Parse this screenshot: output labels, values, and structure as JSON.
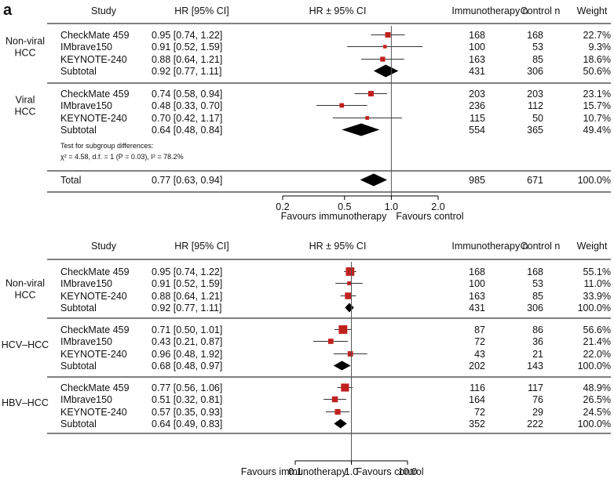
{
  "panel_label": "a",
  "chart_data": [
    {
      "type": "forest",
      "columns": {
        "study": "Study",
        "hr": "HR [95% CI]",
        "plot": "HR ± 95% CI",
        "immuno": "Immunotherapy n",
        "control": "Control n",
        "weight": "Weight"
      },
      "x_scale": "log",
      "xlim": [
        0.2,
        2.0
      ],
      "x_ticks": [
        {
          "value": 0.2,
          "label": "0.2"
        },
        {
          "value": 0.5,
          "label": "0.5"
        },
        {
          "value": 1.0,
          "label": "1.0"
        },
        {
          "value": 2.0,
          "label": "2.0"
        }
      ],
      "reference_line": 1.0,
      "favours_left": "Favours immunotherapy",
      "favours_right": "Favours control",
      "groups": [
        {
          "name": "Non-viral HCC",
          "name_lines": [
            "Non-viral",
            "HCC"
          ],
          "studies": [
            {
              "study": "CheckMate 459",
              "hr_text": "0.95 [0.74, 1.22]",
              "hr": 0.95,
              "lo": 0.74,
              "hi": 1.22,
              "immuno": "168",
              "control": "168",
              "weight": "22.7%",
              "w": 22.7
            },
            {
              "study": "IMbrave150",
              "hr_text": "0.91 [0.52, 1.59]",
              "hr": 0.91,
              "lo": 0.52,
              "hi": 1.59,
              "immuno": "100",
              "control": "53",
              "weight": "9.3%",
              "w": 9.3
            },
            {
              "study": "KEYNOTE-240",
              "hr_text": "0.88 [0.64, 1.21]",
              "hr": 0.88,
              "lo": 0.64,
              "hi": 1.21,
              "immuno": "163",
              "control": "85",
              "weight": "18.6%",
              "w": 18.6
            }
          ],
          "subtotal": {
            "study": "Subtotal",
            "hr_text": "0.92 [0.77, 1.11]",
            "hr": 0.92,
            "lo": 0.77,
            "hi": 1.11,
            "immuno": "431",
            "control": "306",
            "weight": "50.6%"
          }
        },
        {
          "name": "Viral HCC",
          "name_lines": [
            "Viral",
            "HCC"
          ],
          "studies": [
            {
              "study": "CheckMate 459",
              "hr_text": "0.74 [0.58, 0.94]",
              "hr": 0.74,
              "lo": 0.58,
              "hi": 0.94,
              "immuno": "203",
              "control": "203",
              "weight": "23.1%",
              "w": 23.1
            },
            {
              "study": "IMbrave150",
              "hr_text": "0.48 [0.33, 0.70]",
              "hr": 0.48,
              "lo": 0.33,
              "hi": 0.7,
              "immuno": "236",
              "control": "112",
              "weight": "15.7%",
              "w": 15.7
            },
            {
              "study": "KEYNOTE-240",
              "hr_text": "0.70 [0.42, 1.17]",
              "hr": 0.7,
              "lo": 0.42,
              "hi": 1.17,
              "immuno": "115",
              "control": "50",
              "weight": "10.7%",
              "w": 10.7
            }
          ],
          "subtotal": {
            "study": "Subtotal",
            "hr_text": "0.64 [0.48, 0.84]",
            "hr": 0.64,
            "lo": 0.48,
            "hi": 0.84,
            "immuno": "554",
            "control": "365",
            "weight": "49.4%"
          }
        }
      ],
      "subgroup_test": {
        "line1": "Test for subgroup differences:",
        "line2": "χ² = 4.58, d.f. = 1 (P = 0.03), I² = 78.2%"
      },
      "total": {
        "study": "Total",
        "hr_text": "0.77 [0.63, 0.94]",
        "hr": 0.77,
        "lo": 0.63,
        "hi": 0.94,
        "immuno": "985",
        "control": "671",
        "weight": "100.0%"
      }
    },
    {
      "type": "forest",
      "columns": {
        "study": "Study",
        "hr": "HR [95% CI]",
        "plot": "HR ± 95% CI",
        "immuno": "Immunotherapy n",
        "control": "Control n",
        "weight": "Weight"
      },
      "x_scale": "log",
      "xlim": [
        0.1,
        10.0
      ],
      "x_ticks": [
        {
          "value": 0.1,
          "label": "0.1"
        },
        {
          "value": 1.0,
          "label": "1.0"
        },
        {
          "value": 10.0,
          "label": "10.0"
        }
      ],
      "reference_line": 1.0,
      "favours_left": "Favours immunotherapy",
      "favours_right": "Favours control",
      "groups": [
        {
          "name": "Non-viral HCC",
          "name_lines": [
            "Non-viral",
            "HCC"
          ],
          "studies": [
            {
              "study": "CheckMate 459",
              "hr_text": "0.95 [0.74, 1.22]",
              "hr": 0.95,
              "lo": 0.74,
              "hi": 1.22,
              "immuno": "168",
              "control": "168",
              "weight": "55.1%",
              "w": 55.1
            },
            {
              "study": "IMbrave150",
              "hr_text": "0.91 [0.52, 1.59]",
              "hr": 0.91,
              "lo": 0.52,
              "hi": 1.59,
              "immuno": "100",
              "control": "53",
              "weight": "11.0%",
              "w": 11.0
            },
            {
              "study": "KEYNOTE-240",
              "hr_text": "0.88 [0.64, 1.21]",
              "hr": 0.88,
              "lo": 0.64,
              "hi": 1.21,
              "immuno": "163",
              "control": "85",
              "weight": "33.9%",
              "w": 33.9
            }
          ],
          "subtotal": {
            "study": "Subtotal",
            "hr_text": "0.92 [0.77, 1.11]",
            "hr": 0.92,
            "lo": 0.77,
            "hi": 1.11,
            "immuno": "431",
            "control": "306",
            "weight": "100.0%"
          }
        },
        {
          "name": "HCV–HCC",
          "name_lines": [
            "HCV–HCC"
          ],
          "studies": [
            {
              "study": "CheckMate 459",
              "hr_text": "0.71 [0.50, 1.01]",
              "hr": 0.71,
              "lo": 0.5,
              "hi": 1.01,
              "immuno": "87",
              "control": "86",
              "weight": "56.6%",
              "w": 56.6
            },
            {
              "study": "IMbrave150",
              "hr_text": "0.43 [0.21, 0.87]",
              "hr": 0.43,
              "lo": 0.21,
              "hi": 0.87,
              "immuno": "72",
              "control": "36",
              "weight": "21.4%",
              "w": 21.4
            },
            {
              "study": "KEYNOTE-240",
              "hr_text": "0.96 [0.48, 1.92]",
              "hr": 0.96,
              "lo": 0.48,
              "hi": 1.92,
              "immuno": "43",
              "control": "21",
              "weight": "22.0%",
              "w": 22.0
            }
          ],
          "subtotal": {
            "study": "Subtotal",
            "hr_text": "0.68 [0.48, 0.97]",
            "hr": 0.68,
            "lo": 0.48,
            "hi": 0.97,
            "immuno": "202",
            "control": "143",
            "weight": "100.0%"
          }
        },
        {
          "name": "HBV–HCC",
          "name_lines": [
            "HBV–HCC"
          ],
          "studies": [
            {
              "study": "CheckMate 459",
              "hr_text": "0.77 [0.56, 1.06]",
              "hr": 0.77,
              "lo": 0.56,
              "hi": 1.06,
              "immuno": "116",
              "control": "117",
              "weight": "48.9%",
              "w": 48.9
            },
            {
              "study": "IMbrave150",
              "hr_text": "0.51 [0.32, 0.81]",
              "hr": 0.51,
              "lo": 0.32,
              "hi": 0.81,
              "immuno": "164",
              "control": "76",
              "weight": "26.5%",
              "w": 26.5
            },
            {
              "study": "KEYNOTE-240",
              "hr_text": "0.57 [0.35, 0.93]",
              "hr": 0.57,
              "lo": 0.35,
              "hi": 0.93,
              "immuno": "72",
              "control": "29",
              "weight": "24.5%",
              "w": 24.5
            }
          ],
          "subtotal": {
            "study": "Subtotal",
            "hr_text": "0.64 [0.49, 0.83]",
            "hr": 0.64,
            "lo": 0.49,
            "hi": 0.83,
            "immuno": "352",
            "control": "222",
            "weight": "100.0%"
          }
        }
      ]
    }
  ],
  "colors": {
    "marker": "#c0201e",
    "diamond": "#000000",
    "line": "#000000",
    "ci": "#333333",
    "ref": "#555555"
  }
}
